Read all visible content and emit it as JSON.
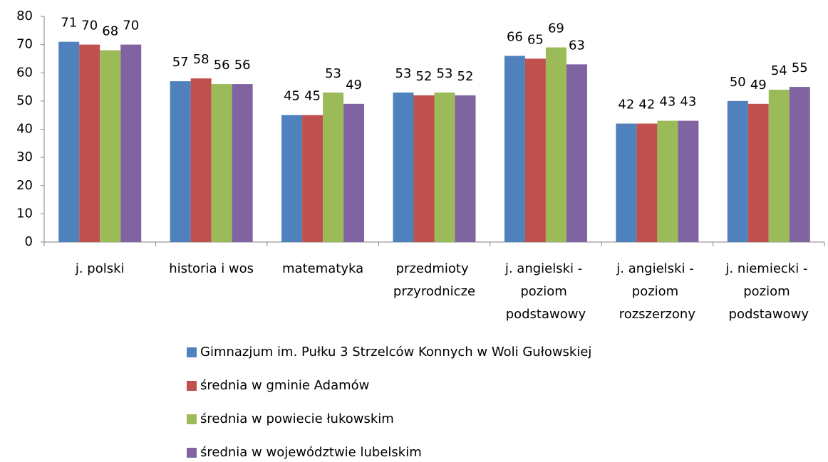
{
  "chart_data": {
    "type": "bar",
    "categories": [
      "j. polski",
      "historia i wos",
      "matematyka",
      "przedmioty przyrodnicze",
      "j. angielski - poziom podstawowy",
      "j. angielski - poziom rozszerzony",
      "j. niemiecki - poziom podstawowy"
    ],
    "series": [
      {
        "name": "Gimnazjum im. Pułku 3 Strzelców Konnych w Woli Gułowskiej",
        "color": "#4f81bd",
        "values": [
          71,
          57,
          45,
          53,
          66,
          42,
          50
        ]
      },
      {
        "name": "średnia w gminie Adamów",
        "color": "#c0504d",
        "values": [
          70,
          58,
          45,
          52,
          65,
          42,
          49
        ]
      },
      {
        "name": "średnia w powiecie łukowskim",
        "color": "#9bbb59",
        "values": [
          68,
          56,
          53,
          53,
          69,
          43,
          54
        ]
      },
      {
        "name": "średnia w województwie lubelskim",
        "color": "#8064a2",
        "values": [
          70,
          56,
          49,
          52,
          63,
          43,
          55
        ]
      }
    ],
    "ylim": [
      0,
      80
    ],
    "yticks": [
      0,
      10,
      20,
      30,
      40,
      50,
      60,
      70,
      80
    ],
    "grid": false,
    "legend": "bottom"
  }
}
